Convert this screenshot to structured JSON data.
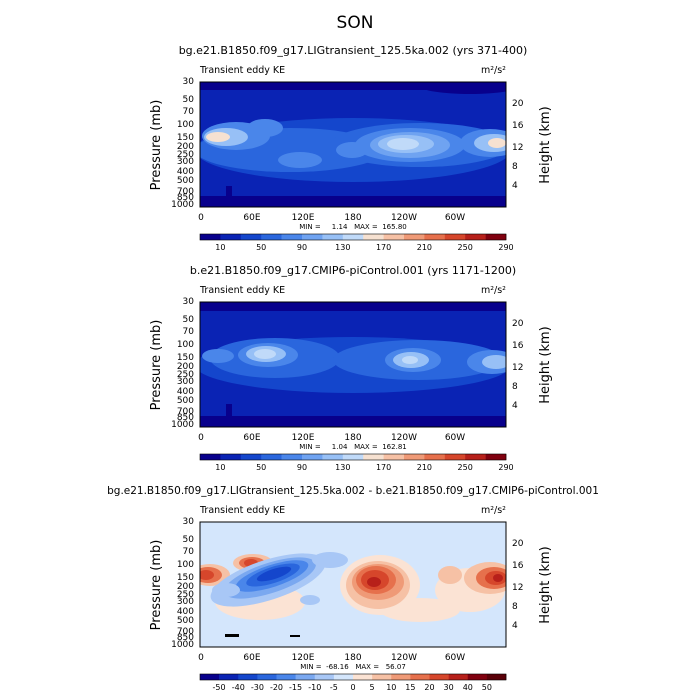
{
  "figure": {
    "title": "SON",
    "panel_label": "Transient eddy KE",
    "units": "m²/s²"
  },
  "colors": {
    "seq": [
      "#08008c",
      "#0a23b4",
      "#1446cc",
      "#2a66dd",
      "#4a86ea",
      "#6fa3f1",
      "#97c0f6",
      "#c0daf9",
      "#f6e1d1",
      "#f6c1a5",
      "#ef9a77",
      "#e6704c",
      "#d6462b",
      "#b7201a",
      "#80000f"
    ],
    "div": [
      "#08008c",
      "#0a23b4",
      "#1446cc",
      "#2a66dd",
      "#4a86ea",
      "#7aa8f0",
      "#a8c7f6",
      "#d4e6fc",
      "#fbe3d4",
      "#f6c1a5",
      "#ef9a77",
      "#e6704c",
      "#d6462b",
      "#b7201a",
      "#80000f",
      "#5a0008"
    ]
  },
  "chart_data": [
    {
      "type": "heatmap",
      "title": "bg.e21.B1850.f09_g17.LIGtransient_125.5ka.002 (yrs 371-400)",
      "subtitle": "Transient eddy KE",
      "units": "m²/s²",
      "ylabel": "Pressure (mb)",
      "y2label": "Height (km)",
      "xticks": [
        "0",
        "60E",
        "120E",
        "180",
        "120W",
        "60W"
      ],
      "yticks": [
        "30",
        "50",
        "70",
        "100",
        "150",
        "200",
        "250",
        "300",
        "400",
        "500",
        "700",
        "850",
        "1000"
      ],
      "y2ticks": [
        "20",
        "16",
        "12",
        "8",
        "4"
      ],
      "stats": "MIN =     1.14   MAX =  165.80",
      "colorbar_labels": [
        "10",
        "50",
        "90",
        "130",
        "170",
        "210",
        "250",
        "290"
      ]
    },
    {
      "type": "heatmap",
      "title": "b.e21.B1850.f09_g17.CMIP6-piControl.001 (yrs 1171-1200)",
      "subtitle": "Transient eddy KE",
      "units": "m²/s²",
      "ylabel": "Pressure (mb)",
      "y2label": "Height (km)",
      "xticks": [
        "0",
        "60E",
        "120E",
        "180",
        "120W",
        "60W"
      ],
      "yticks": [
        "30",
        "50",
        "70",
        "100",
        "150",
        "200",
        "250",
        "300",
        "400",
        "500",
        "700",
        "850",
        "1000"
      ],
      "y2ticks": [
        "20",
        "16",
        "12",
        "8",
        "4"
      ],
      "stats": "MIN =     1.04   MAX =  162.81",
      "colorbar_labels": [
        "10",
        "50",
        "90",
        "130",
        "170",
        "210",
        "250",
        "290"
      ]
    },
    {
      "type": "heatmap",
      "title": "bg.e21.B1850.f09_g17.LIGtransient_125.5ka.002 - b.e21.B1850.f09_g17.CMIP6-piControl.001",
      "subtitle": "Transient eddy KE",
      "units": "m²/s²",
      "ylabel": "Pressure (mb)",
      "y2label": "Height (km)",
      "xticks": [
        "0",
        "60E",
        "120E",
        "180",
        "120W",
        "60W"
      ],
      "yticks": [
        "30",
        "50",
        "70",
        "100",
        "150",
        "200",
        "250",
        "300",
        "400",
        "500",
        "700",
        "850",
        "1000"
      ],
      "y2ticks": [
        "20",
        "16",
        "12",
        "8",
        "4"
      ],
      "stats": "MIN =  -68.16   MAX =   56.07",
      "colorbar_labels": [
        "-50",
        "-40",
        "-30",
        "-20",
        "-15",
        "-10",
        "-5",
        "0",
        "5",
        "10",
        "15",
        "20",
        "30",
        "40",
        "50"
      ]
    }
  ]
}
